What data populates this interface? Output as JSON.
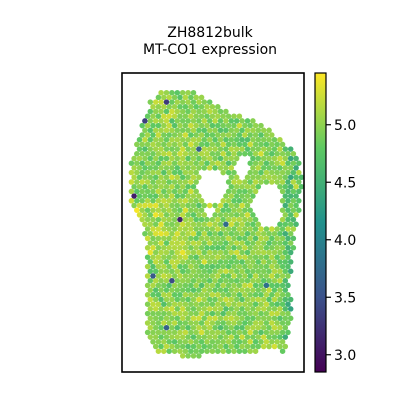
{
  "chart_data": {
    "type": "heatmap",
    "title_lines": [
      "ZH8812bulk",
      "MT-CO1 expression"
    ],
    "xlabel": "",
    "ylabel": "",
    "colorbar": {
      "colormap": "viridis",
      "range": [
        2.85,
        5.45
      ],
      "ticks": [
        3.0,
        3.5,
        4.0,
        4.5,
        5.0
      ],
      "tick_labels": [
        "3.0",
        "3.5",
        "4.0",
        "4.5",
        "5.0"
      ]
    },
    "spots": {
      "typical_value_range": [
        4.3,
        5.3
      ],
      "mean_value": 4.8,
      "low_outliers_min": 3.0
    },
    "grid": false,
    "legend": "colorbar-right"
  }
}
